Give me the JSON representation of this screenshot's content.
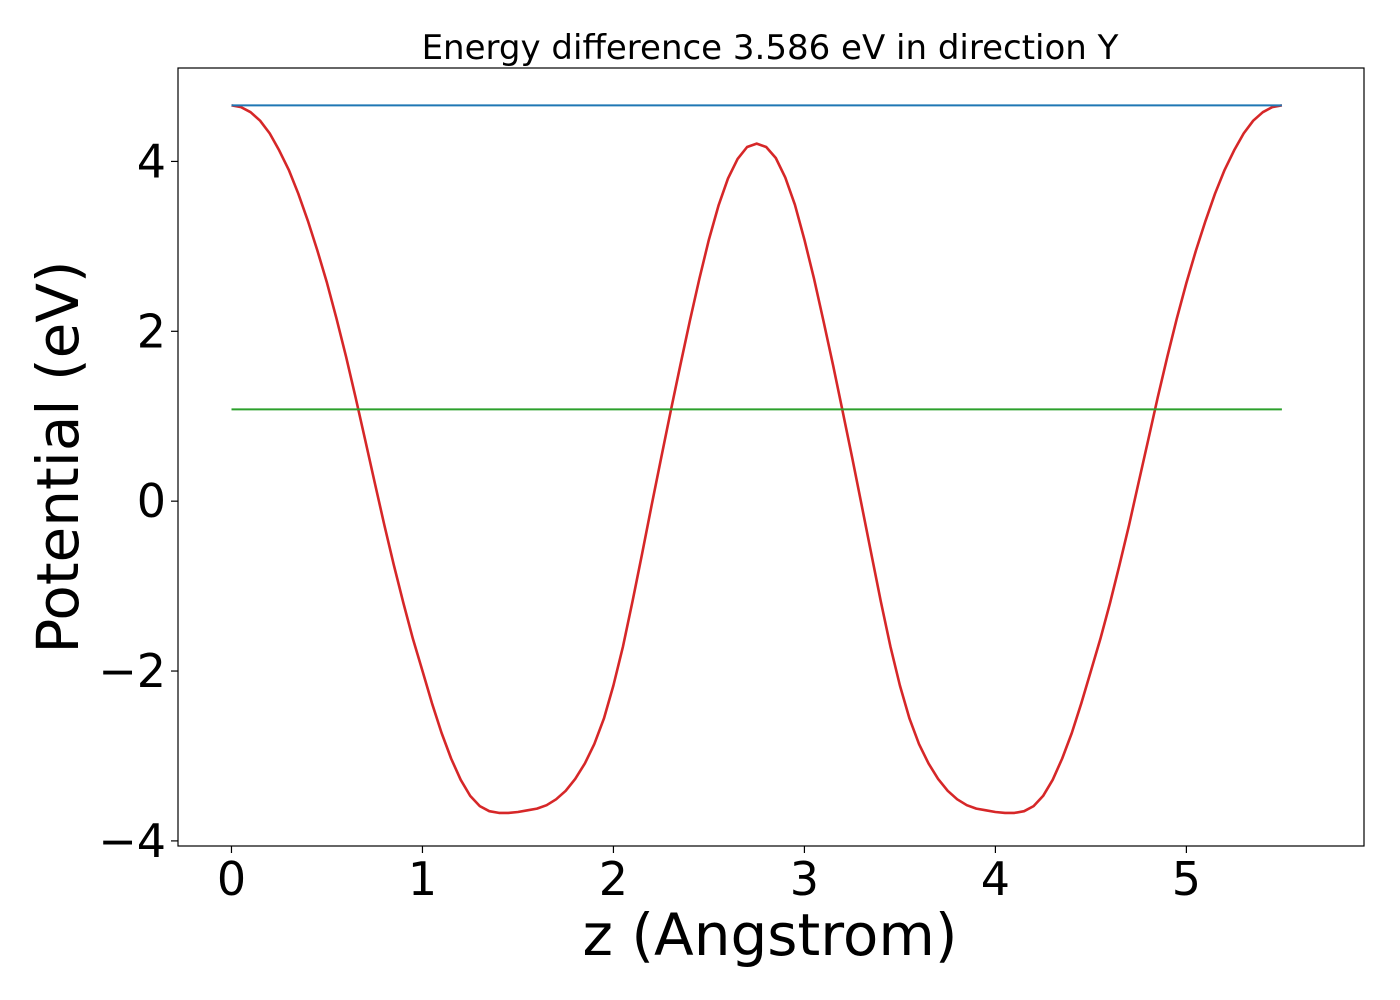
{
  "chart_data": {
    "type": "line",
    "title": "Energy difference 3.586 eV in direction Y",
    "xlabel": "z (Angstrom)",
    "ylabel": "Potential (eV)",
    "xlim": [
      -0.28,
      5.93
    ],
    "ylim": [
      -4.06,
      5.1
    ],
    "xticks": [
      0,
      1,
      2,
      3,
      4,
      5
    ],
    "yticks": [
      -4,
      -2,
      0,
      2,
      4
    ],
    "xtick_labels": [
      "0",
      "1",
      "2",
      "3",
      "4",
      "5"
    ],
    "ytick_labels": [
      "−4",
      "−2",
      "0",
      "2",
      "4"
    ],
    "grid": false,
    "legend": "none",
    "series": [
      {
        "color": "#d62728",
        "style": "line",
        "points": [
          [
            0.0,
            4.66
          ],
          [
            0.05,
            4.64
          ],
          [
            0.1,
            4.58
          ],
          [
            0.15,
            4.48
          ],
          [
            0.2,
            4.33
          ],
          [
            0.25,
            4.13
          ],
          [
            0.3,
            3.9
          ],
          [
            0.35,
            3.62
          ],
          [
            0.4,
            3.3
          ],
          [
            0.45,
            2.95
          ],
          [
            0.5,
            2.57
          ],
          [
            0.55,
            2.15
          ],
          [
            0.6,
            1.7
          ],
          [
            0.65,
            1.22
          ],
          [
            0.7,
            0.72
          ],
          [
            0.75,
            0.22
          ],
          [
            0.8,
            -0.28
          ],
          [
            0.85,
            -0.75
          ],
          [
            0.9,
            -1.2
          ],
          [
            0.95,
            -1.62
          ],
          [
            1.0,
            -2.0
          ],
          [
            1.05,
            -2.38
          ],
          [
            1.1,
            -2.73
          ],
          [
            1.15,
            -3.03
          ],
          [
            1.2,
            -3.28
          ],
          [
            1.25,
            -3.47
          ],
          [
            1.3,
            -3.59
          ],
          [
            1.35,
            -3.65
          ],
          [
            1.4,
            -3.67
          ],
          [
            1.45,
            -3.67
          ],
          [
            1.5,
            -3.66
          ],
          [
            1.55,
            -3.64
          ],
          [
            1.6,
            -3.62
          ],
          [
            1.65,
            -3.58
          ],
          [
            1.7,
            -3.51
          ],
          [
            1.75,
            -3.41
          ],
          [
            1.8,
            -3.27
          ],
          [
            1.85,
            -3.09
          ],
          [
            1.9,
            -2.86
          ],
          [
            1.95,
            -2.56
          ],
          [
            2.0,
            -2.17
          ],
          [
            2.05,
            -1.71
          ],
          [
            2.1,
            -1.18
          ],
          [
            2.15,
            -0.62
          ],
          [
            2.2,
            -0.05
          ],
          [
            2.25,
            0.51
          ],
          [
            2.3,
            1.06
          ],
          [
            2.35,
            1.6
          ],
          [
            2.4,
            2.12
          ],
          [
            2.45,
            2.62
          ],
          [
            2.5,
            3.08
          ],
          [
            2.55,
            3.48
          ],
          [
            2.6,
            3.8
          ],
          [
            2.65,
            4.03
          ],
          [
            2.7,
            4.17
          ],
          [
            2.75,
            4.21
          ],
          [
            2.8,
            4.17
          ],
          [
            2.85,
            4.04
          ],
          [
            2.9,
            3.81
          ],
          [
            2.95,
            3.49
          ],
          [
            3.0,
            3.08
          ],
          [
            3.05,
            2.62
          ],
          [
            3.1,
            2.12
          ],
          [
            3.15,
            1.6
          ],
          [
            3.2,
            1.06
          ],
          [
            3.25,
            0.51
          ],
          [
            3.3,
            -0.05
          ],
          [
            3.35,
            -0.62
          ],
          [
            3.4,
            -1.18
          ],
          [
            3.45,
            -1.71
          ],
          [
            3.5,
            -2.17
          ],
          [
            3.55,
            -2.56
          ],
          [
            3.6,
            -2.86
          ],
          [
            3.65,
            -3.09
          ],
          [
            3.7,
            -3.27
          ],
          [
            3.75,
            -3.41
          ],
          [
            3.8,
            -3.51
          ],
          [
            3.85,
            -3.58
          ],
          [
            3.9,
            -3.62
          ],
          [
            3.95,
            -3.64
          ],
          [
            4.0,
            -3.66
          ],
          [
            4.05,
            -3.67
          ],
          [
            4.1,
            -3.67
          ],
          [
            4.15,
            -3.65
          ],
          [
            4.2,
            -3.59
          ],
          [
            4.25,
            -3.47
          ],
          [
            4.3,
            -3.28
          ],
          [
            4.35,
            -3.03
          ],
          [
            4.4,
            -2.73
          ],
          [
            4.45,
            -2.38
          ],
          [
            4.5,
            -2.0
          ],
          [
            4.55,
            -1.62
          ],
          [
            4.6,
            -1.2
          ],
          [
            4.65,
            -0.75
          ],
          [
            4.7,
            -0.28
          ],
          [
            4.75,
            0.22
          ],
          [
            4.8,
            0.72
          ],
          [
            4.85,
            1.22
          ],
          [
            4.9,
            1.7
          ],
          [
            4.95,
            2.15
          ],
          [
            5.0,
            2.57
          ],
          [
            5.05,
            2.95
          ],
          [
            5.1,
            3.3
          ],
          [
            5.15,
            3.62
          ],
          [
            5.2,
            3.9
          ],
          [
            5.25,
            4.13
          ],
          [
            5.3,
            4.33
          ],
          [
            5.35,
            4.48
          ],
          [
            5.4,
            4.58
          ],
          [
            5.45,
            4.64
          ],
          [
            5.5,
            4.66
          ]
        ]
      },
      {
        "color": "#1f77b4",
        "style": "hline",
        "x": [
          0.0,
          5.5
        ],
        "y": 4.66
      },
      {
        "color": "#2ca02c",
        "style": "hline",
        "x": [
          0.0,
          5.5
        ],
        "y": 1.08
      }
    ]
  }
}
